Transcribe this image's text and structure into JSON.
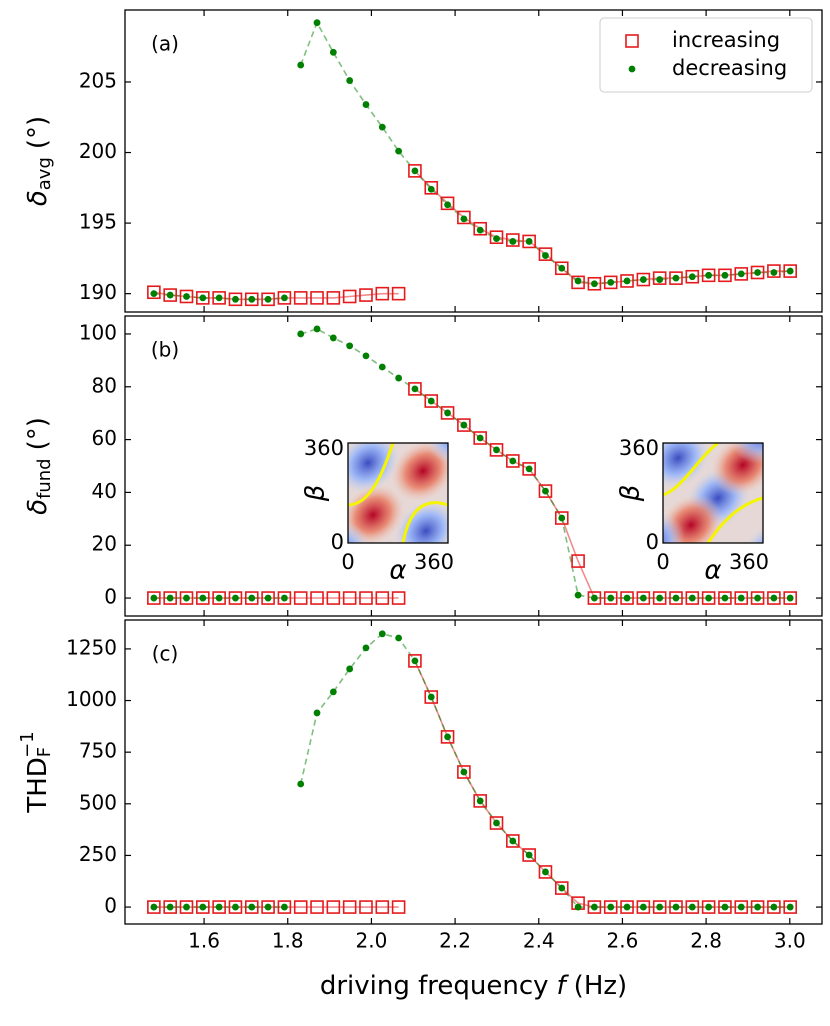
{
  "chart_data": [
    {
      "type": "line",
      "panel_label": "(a)",
      "ylabel": {
        "main": "δ",
        "sub": "avg",
        "unit": "(°)"
      },
      "x": [
        1.48,
        1.519,
        1.558,
        1.597,
        1.636,
        1.675,
        1.714,
        1.753,
        1.792,
        1.831,
        1.87,
        1.909,
        1.948,
        1.987,
        2.026,
        2.065,
        2.104,
        2.143,
        2.182,
        2.221,
        2.26,
        2.299,
        2.338,
        2.377,
        2.416,
        2.455,
        2.494,
        2.533,
        2.572,
        2.611,
        2.65,
        2.689,
        2.728,
        2.767,
        2.806,
        2.845,
        2.884,
        2.923,
        2.962,
        3.001
      ],
      "xlim": [
        1.411,
        3.077
      ],
      "xticks": [
        1.6,
        1.8,
        {
          "value": 2,
          "label": "2.0"
        },
        2.2,
        2.4,
        2.6,
        2.8,
        {
          "value": 3,
          "label": "3.0"
        }
      ],
      "ylim": [
        188.7,
        210.1
      ],
      "yticks": [
        190,
        195,
        200,
        205
      ],
      "legend": "upper right",
      "series": [
        {
          "name": "increasing",
          "color": "#e41a1c",
          "marker": "square",
          "line": "solid",
          "values": [
            190.1,
            189.9,
            189.8,
            189.7,
            189.7,
            189.6,
            189.6,
            189.6,
            189.7,
            189.7,
            189.7,
            189.7,
            189.8,
            189.9,
            190.0,
            190.0,
            198.7,
            197.5,
            196.4,
            195.4,
            194.6,
            194.0,
            193.8,
            193.7,
            192.8,
            191.8,
            190.8,
            190.7,
            190.8,
            190.9,
            191.0,
            191.1,
            191.1,
            191.2,
            191.3,
            191.3,
            191.4,
            191.5,
            191.6,
            191.6
          ]
        },
        {
          "name": "decreasing",
          "color": "#008000",
          "marker": "dot",
          "line": "dashed",
          "values": [
            190.0,
            189.9,
            189.8,
            189.7,
            189.7,
            189.6,
            189.6,
            189.6,
            189.7,
            206.2,
            209.2,
            207.1,
            205.1,
            203.4,
            201.8,
            200.1,
            198.7,
            197.4,
            196.3,
            195.3,
            194.5,
            193.9,
            193.7,
            193.7,
            192.7,
            191.8,
            190.9,
            190.7,
            190.8,
            190.9,
            191.0,
            191.0,
            191.1,
            191.2,
            191.3,
            191.3,
            191.4,
            191.5,
            191.5,
            191.6
          ]
        }
      ]
    },
    {
      "type": "line",
      "panel_label": "(b)",
      "ylabel": {
        "main": "δ",
        "sub": "fund",
        "unit": "(°)"
      },
      "x": [
        1.48,
        1.519,
        1.558,
        1.597,
        1.636,
        1.675,
        1.714,
        1.753,
        1.792,
        1.831,
        1.87,
        1.909,
        1.948,
        1.987,
        2.026,
        2.065,
        2.104,
        2.143,
        2.182,
        2.221,
        2.26,
        2.299,
        2.338,
        2.377,
        2.416,
        2.455,
        2.494,
        2.533,
        2.572,
        2.611,
        2.65,
        2.689,
        2.728,
        2.767,
        2.806,
        2.845,
        2.884,
        2.923,
        2.962,
        3.001
      ],
      "xlim": [
        1.411,
        3.077
      ],
      "xticks": [
        1.6,
        1.8,
        {
          "value": 2,
          "label": "2.0"
        },
        2.2,
        2.4,
        2.6,
        2.8,
        {
          "value": 3,
          "label": "3.0"
        }
      ],
      "ylim": [
        -6.8,
        106.8
      ],
      "yticks": [
        0,
        20,
        40,
        60,
        80,
        100
      ],
      "series": [
        {
          "color": "#e41a1c",
          "marker": "square",
          "line": "solid",
          "values": [
            0,
            0,
            0,
            0,
            0,
            0,
            0,
            0,
            0,
            0,
            0,
            0,
            0,
            0,
            0,
            0,
            79.2,
            74.6,
            70.1,
            65.5,
            60.6,
            56.1,
            51.9,
            48.9,
            40.5,
            30.3,
            14.0,
            0,
            0,
            0,
            0,
            0,
            0,
            0,
            0,
            0,
            0,
            0,
            0,
            0
          ]
        },
        {
          "color": "#008000",
          "marker": "dot",
          "line": "dashed",
          "values": [
            0,
            0,
            0,
            0,
            0,
            0,
            0,
            0,
            0,
            100,
            101.9,
            98.5,
            95.5,
            91.7,
            87.5,
            83.3,
            79.2,
            74.6,
            70.1,
            65.5,
            60.6,
            56.1,
            51.9,
            48.9,
            40.5,
            30.3,
            1.1,
            0,
            0,
            0,
            0,
            0,
            0,
            0,
            0,
            0,
            0,
            0,
            0,
            0
          ]
        }
      ],
      "insets": [
        {
          "xlabel": "α",
          "ylabel": "β",
          "xticks": [
            0,
            360
          ],
          "yticks": [
            0,
            360
          ]
        },
        {
          "xlabel": "α",
          "ylabel": "β",
          "xticks": [
            0,
            360
          ],
          "yticks": [
            0,
            360
          ]
        }
      ]
    },
    {
      "type": "line",
      "panel_label": "(c)",
      "ylabel": {
        "main": "THD",
        "sub": "F",
        "sup": "−1"
      },
      "xlabel": {
        "text": "driving frequency",
        "var": "f",
        "unit": "(Hz)"
      },
      "x": [
        1.48,
        1.519,
        1.558,
        1.597,
        1.636,
        1.675,
        1.714,
        1.753,
        1.792,
        1.831,
        1.87,
        1.909,
        1.948,
        1.987,
        2.026,
        2.065,
        2.104,
        2.143,
        2.182,
        2.221,
        2.26,
        2.299,
        2.338,
        2.377,
        2.416,
        2.455,
        2.494,
        2.533,
        2.572,
        2.611,
        2.65,
        2.689,
        2.728,
        2.767,
        2.806,
        2.845,
        2.884,
        2.923,
        2.962,
        3.001
      ],
      "xlim": [
        1.411,
        3.077
      ],
      "xticks": [
        1.6,
        1.8,
        {
          "value": 2,
          "label": "2.0"
        },
        2.2,
        2.4,
        2.6,
        2.8,
        {
          "value": 3,
          "label": "3.0"
        }
      ],
      "ylim": [
        -82,
        1390
      ],
      "yticks": [
        0,
        250,
        500,
        750,
        1000,
        1250
      ],
      "series": [
        {
          "color": "#e41a1c",
          "marker": "square",
          "line": "solid",
          "values": [
            0,
            0,
            0,
            0,
            0,
            0,
            0,
            0,
            0,
            0,
            0,
            0,
            0,
            0,
            0,
            0,
            1192,
            1017,
            824,
            654,
            514,
            407,
            320,
            252,
            170,
            92,
            19,
            0,
            0,
            0,
            0,
            0,
            0,
            0,
            0,
            0,
            0,
            0,
            0,
            0
          ]
        },
        {
          "color": "#008000",
          "marker": "dot",
          "line": "dashed",
          "values": [
            0,
            0,
            0,
            0,
            0,
            0,
            0,
            0,
            0,
            596,
            940,
            1042,
            1153,
            1255,
            1323,
            1303,
            1192,
            1017,
            824,
            654,
            514,
            407,
            320,
            252,
            170,
            92,
            0,
            0,
            0,
            0,
            0,
            0,
            0,
            0,
            0,
            0,
            0,
            0,
            0,
            0
          ]
        }
      ]
    }
  ]
}
